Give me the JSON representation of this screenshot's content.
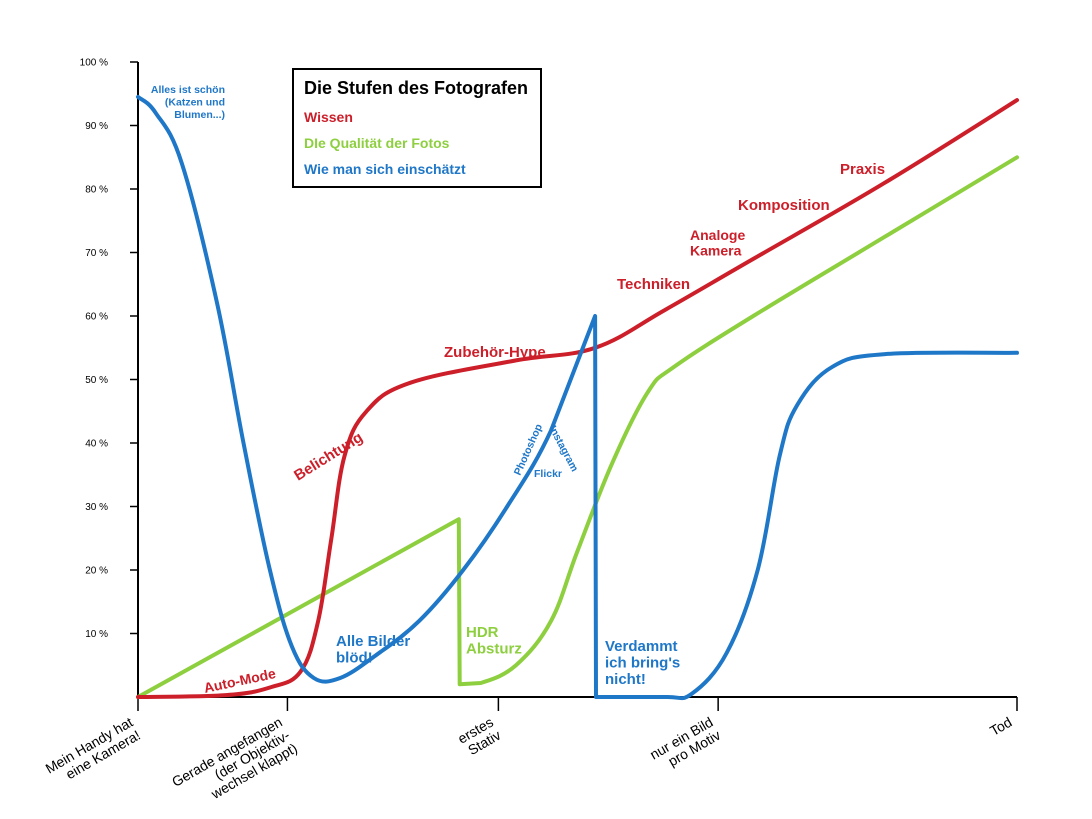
{
  "colors": {
    "wissen": "#cc1f2a",
    "qualitaet": "#8dcf3f",
    "einschaetzung": "#1f77c8",
    "axis": "#000000"
  },
  "chart_data": {
    "type": "line",
    "title": "Die Stufen des Fotografen",
    "ylim": [
      0,
      100
    ],
    "y_ticks": [
      "100 %",
      "90 %",
      "80 %",
      "70 %",
      "60 %",
      "50 %",
      "40 %",
      "30 %",
      "20 %",
      "10 %"
    ],
    "x_ticks": [
      "Mein Handy hat|eine Kamera!",
      "Gerade angefangen|(der Objektiv-|wechsel klappt)",
      "erstes|Stativ",
      "nur ein Bild|pro Motiv",
      "Tod"
    ],
    "x_tick_positions": [
      0,
      1.7,
      4.1,
      6.6,
      10
    ],
    "xlim": [
      0,
      10
    ],
    "grid": false,
    "legend": "top-left",
    "series": [
      {
        "name": "Wissen",
        "points": [
          [
            0,
            0
          ],
          [
            1,
            0.3
          ],
          [
            1.5,
            1.5
          ],
          [
            1.85,
            4
          ],
          [
            2.05,
            12
          ],
          [
            2.2,
            25
          ],
          [
            2.35,
            38
          ],
          [
            2.6,
            45
          ],
          [
            3.1,
            49.5
          ],
          [
            4.3,
            53
          ],
          [
            5.2,
            55
          ],
          [
            6,
            61
          ],
          [
            7,
            69
          ],
          [
            8.5,
            81
          ],
          [
            10,
            94
          ]
        ]
      },
      {
        "name": "DIe Qualität der Fotos",
        "points": [
          [
            0,
            0
          ],
          [
            3.65,
            28
          ],
          [
            3.66,
            2
          ],
          [
            3.9,
            2.2
          ],
          [
            4.3,
            5
          ],
          [
            4.7,
            12
          ],
          [
            5,
            23
          ],
          [
            5.4,
            37
          ],
          [
            5.8,
            48
          ],
          [
            6.1,
            52
          ],
          [
            7,
            60
          ],
          [
            8.5,
            72.5
          ],
          [
            10,
            85
          ]
        ]
      },
      {
        "name": "Wie man sich einschätzt",
        "points": [
          [
            0,
            94.5
          ],
          [
            0.2,
            92
          ],
          [
            0.5,
            84
          ],
          [
            0.9,
            62
          ],
          [
            1.2,
            40
          ],
          [
            1.5,
            20
          ],
          [
            1.75,
            8
          ],
          [
            2,
            3
          ],
          [
            2.3,
            3
          ],
          [
            2.7,
            6.5
          ],
          [
            3.2,
            12
          ],
          [
            3.7,
            20
          ],
          [
            4.2,
            30
          ],
          [
            4.7,
            42
          ],
          [
            5.2,
            60
          ],
          [
            5.21,
            0
          ],
          [
            6,
            0
          ],
          [
            6.3,
            0.5
          ],
          [
            6.7,
            7
          ],
          [
            7.05,
            20
          ],
          [
            7.3,
            38
          ],
          [
            7.5,
            46
          ],
          [
            7.9,
            52
          ],
          [
            8.5,
            54
          ],
          [
            10,
            54.2
          ]
        ]
      }
    ],
    "annotations": {
      "alles": [
        "Alles ist schön",
        "(Katzen und",
        "Blumen...)"
      ],
      "alle_bilder": [
        "Alle Bilder",
        "blöd!"
      ],
      "hdr": [
        "HDR",
        "Absturz"
      ],
      "verdammt": [
        "Verdammt",
        "ich bring's",
        "nicht!"
      ],
      "photoshop": "Photoshop",
      "instagram": "Instagram",
      "flickr": "Flickr",
      "auto_mode": "Auto-Mode",
      "belichtung": "Belichtung",
      "zubehoer": "Zubehör-Hype",
      "techniken": "Techniken",
      "analoge": [
        "Analoge",
        "Kamera"
      ],
      "komposition": "Komposition",
      "praxis": "Praxis"
    }
  },
  "legend": {
    "title": "Die Stufen des Fotografen",
    "items": [
      "Wissen",
      "DIe Qualität der Fotos",
      "Wie man sich einschätzt"
    ]
  }
}
